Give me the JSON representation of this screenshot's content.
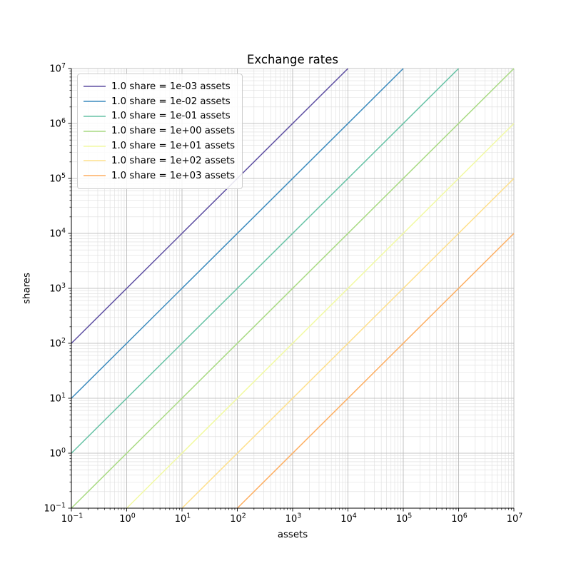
{
  "chart_data": {
    "type": "line",
    "title": "Exchange rates",
    "xlabel": "assets",
    "ylabel": "shares",
    "xscale": "log",
    "yscale": "log",
    "xlim": [
      0.1,
      10000000
    ],
    "ylim": [
      0.1,
      10000000
    ],
    "xtick_exponents": [
      -1,
      0,
      1,
      2,
      3,
      4,
      5,
      6,
      7
    ],
    "ytick_exponents": [
      -1,
      0,
      1,
      2,
      3,
      4,
      5,
      6,
      7
    ],
    "grid": "major+minor",
    "legend_position": "upper-left",
    "series": [
      {
        "name": "1.0 share = 1e-03 assets",
        "rate_assets_per_share": 0.001,
        "color": "#5e4fa2",
        "x": [
          0.1,
          10000
        ],
        "y": [
          100,
          10000000
        ]
      },
      {
        "name": "1.0 share = 1e-02 assets",
        "rate_assets_per_share": 0.01,
        "color": "#3a8abd",
        "x": [
          0.1,
          100000
        ],
        "y": [
          10,
          10000000
        ]
      },
      {
        "name": "1.0 share = 1e-01 assets",
        "rate_assets_per_share": 0.1,
        "color": "#66c2a5",
        "x": [
          0.1,
          1000000
        ],
        "y": [
          1,
          10000000
        ]
      },
      {
        "name": "1.0 share = 1e+00 assets",
        "rate_assets_per_share": 1,
        "color": "#a8da82",
        "x": [
          0.1,
          10000000
        ],
        "y": [
          0.1,
          10000000
        ]
      },
      {
        "name": "1.0 share = 1e+01 assets",
        "rate_assets_per_share": 10,
        "color": "#f2faa2",
        "x": [
          1,
          10000000
        ],
        "y": [
          0.1,
          1000000
        ]
      },
      {
        "name": "1.0 share = 1e+02 assets",
        "rate_assets_per_share": 100,
        "color": "#fee08b",
        "x": [
          10,
          10000000
        ],
        "y": [
          0.1,
          100000
        ]
      },
      {
        "name": "1.0 share = 1e+03 assets",
        "rate_assets_per_share": 1000,
        "color": "#fdae61",
        "x": [
          100,
          10000000
        ],
        "y": [
          0.1,
          10000
        ]
      }
    ]
  },
  "colors": {
    "background": "#ffffff",
    "grid_major": "#b3b3b3",
    "grid_minor": "#dedede",
    "spine": "#000000",
    "text": "#000000",
    "legend_border": "#cccccc"
  }
}
